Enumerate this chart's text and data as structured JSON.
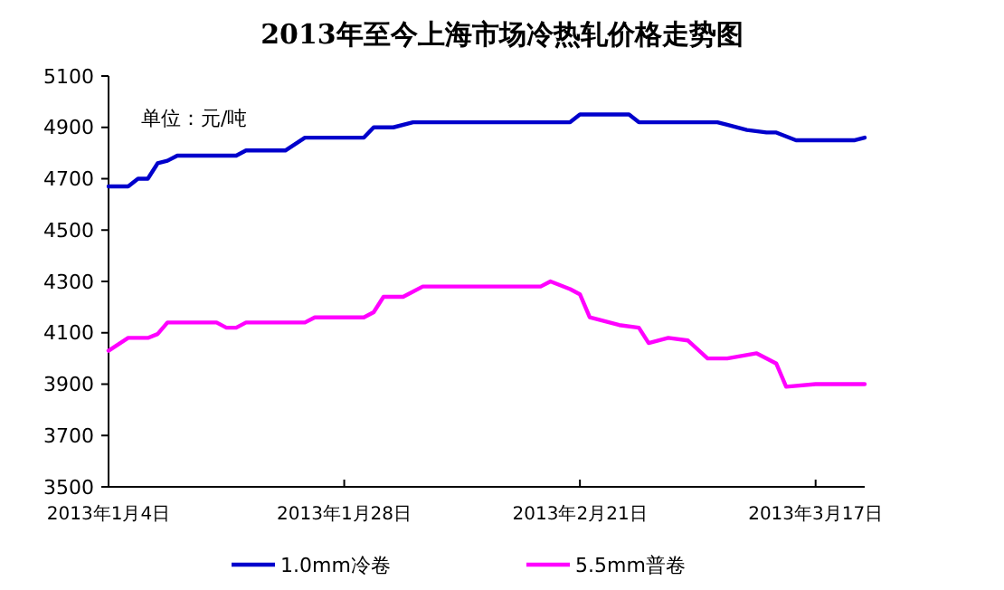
{
  "chart_data": {
    "type": "line",
    "title": "2013年至今上海市场冷热轧价格走势图",
    "annotations": [
      "单位：元/吨"
    ],
    "xlim": [
      "2013-01-04",
      "2013-03-22"
    ],
    "xticks": [
      {
        "value": "2013-01-04",
        "label": "2013年1月4日"
      },
      {
        "value": "2013-01-28",
        "label": "2013年1月28日"
      },
      {
        "value": "2013-02-21",
        "label": "2013年2月21日"
      },
      {
        "value": "2013-03-17",
        "label": "2013年3月17日"
      }
    ],
    "ylim": [
      3500,
      5100
    ],
    "yticks": [
      3500,
      3700,
      3900,
      4100,
      4300,
      4500,
      4700,
      4900,
      5100
    ],
    "grid": false,
    "legend": "bottom",
    "marker": "none",
    "line_style": "solid",
    "series": [
      {
        "name": "1.0mm冷卷",
        "color": "#0000cc",
        "x": [
          "2013-01-04",
          "2013-01-06",
          "2013-01-07",
          "2013-01-08",
          "2013-01-09",
          "2013-01-10",
          "2013-01-11",
          "2013-01-17",
          "2013-01-18",
          "2013-01-22",
          "2013-01-24",
          "2013-01-30",
          "2013-01-31",
          "2013-02-02",
          "2013-02-04",
          "2013-02-20",
          "2013-02-21",
          "2013-02-26",
          "2013-02-27",
          "2013-03-07",
          "2013-03-08",
          "2013-03-10",
          "2013-03-12",
          "2013-03-13",
          "2013-03-15",
          "2013-03-21",
          "2013-03-22"
        ],
        "values": [
          4670,
          4670,
          4700,
          4700,
          4760,
          4770,
          4790,
          4790,
          4810,
          4810,
          4860,
          4860,
          4900,
          4900,
          4920,
          4920,
          4950,
          4950,
          4920,
          4920,
          4910,
          4890,
          4880,
          4880,
          4850,
          4850,
          4860
        ]
      },
      {
        "name": "5.5mm普卷",
        "color": "#ff00ff",
        "x": [
          "2013-01-04",
          "2013-01-06",
          "2013-01-08",
          "2013-01-09",
          "2013-01-10",
          "2013-01-15",
          "2013-01-16",
          "2013-01-17",
          "2013-01-18",
          "2013-01-24",
          "2013-01-25",
          "2013-01-30",
          "2013-01-31",
          "2013-02-01",
          "2013-02-03",
          "2013-02-05",
          "2013-02-17",
          "2013-02-18",
          "2013-02-20",
          "2013-02-21",
          "2013-02-22",
          "2013-02-25",
          "2013-02-27",
          "2013-02-28",
          "2013-03-02",
          "2013-03-04",
          "2013-03-06",
          "2013-03-08",
          "2013-03-11",
          "2013-03-13",
          "2013-03-14",
          "2013-03-17",
          "2013-03-22"
        ],
        "values": [
          4030,
          4080,
          4080,
          4095,
          4140,
          4140,
          4120,
          4120,
          4140,
          4140,
          4160,
          4160,
          4180,
          4240,
          4240,
          4280,
          4280,
          4300,
          4270,
          4250,
          4160,
          4130,
          4120,
          4060,
          4080,
          4070,
          4000,
          4000,
          4020,
          3980,
          3890,
          3900,
          3900
        ]
      }
    ]
  }
}
